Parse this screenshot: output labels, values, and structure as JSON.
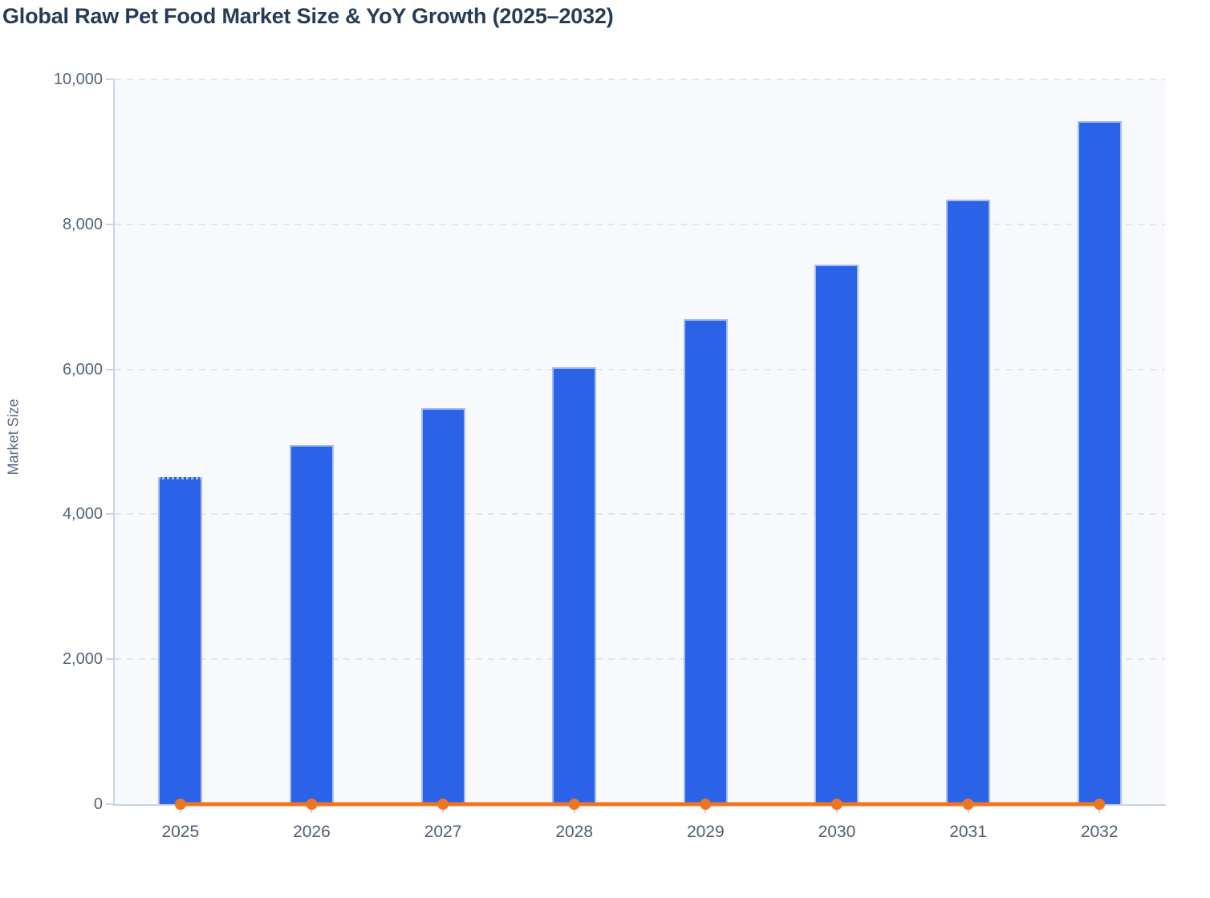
{
  "chart_data": {
    "type": "bar",
    "title": "Global Raw Pet Food Market Size & YoY Growth (2025–2032)",
    "ylabel": "Market Size",
    "xlabel": "",
    "ylim": [
      0,
      10000
    ],
    "yticks": [
      {
        "value": 0,
        "label": "0"
      },
      {
        "value": 2000,
        "label": "2,000"
      },
      {
        "value": 4000,
        "label": "4,000"
      },
      {
        "value": 6000,
        "label": "6,000"
      },
      {
        "value": 8000,
        "label": "8,000"
      },
      {
        "value": 10000,
        "label": "10,000"
      }
    ],
    "categories": [
      "2025",
      "2026",
      "2027",
      "2028",
      "2029",
      "2030",
      "2031",
      "2032"
    ],
    "series": [
      {
        "name": "Market Size",
        "type": "bar",
        "color": "#2a63e8",
        "values": [
          4510,
          4955,
          5465,
          6030,
          6695,
          7445,
          8340,
          9425
        ]
      },
      {
        "name": "YoY Growth",
        "type": "line",
        "color": "#ef7522",
        "values": [
          0,
          0,
          0,
          0,
          0,
          0,
          0,
          0
        ]
      }
    ],
    "grid": {
      "horizontal": true,
      "style": "dashed"
    },
    "legend": {
      "visible": false
    }
  },
  "colors": {
    "page_background": "#ffffff",
    "plot_background": "#f8f9fc",
    "title_text": "#263c56",
    "axis_line": "#c9d2e9",
    "gridline": "#e2e5eb",
    "y_tick_label": "#55627b",
    "x_tick_label": "#4f5d77",
    "bar_fill": "#2a63e8",
    "bar_border": "#a5bef2",
    "yoy_line": "#ef7522"
  }
}
